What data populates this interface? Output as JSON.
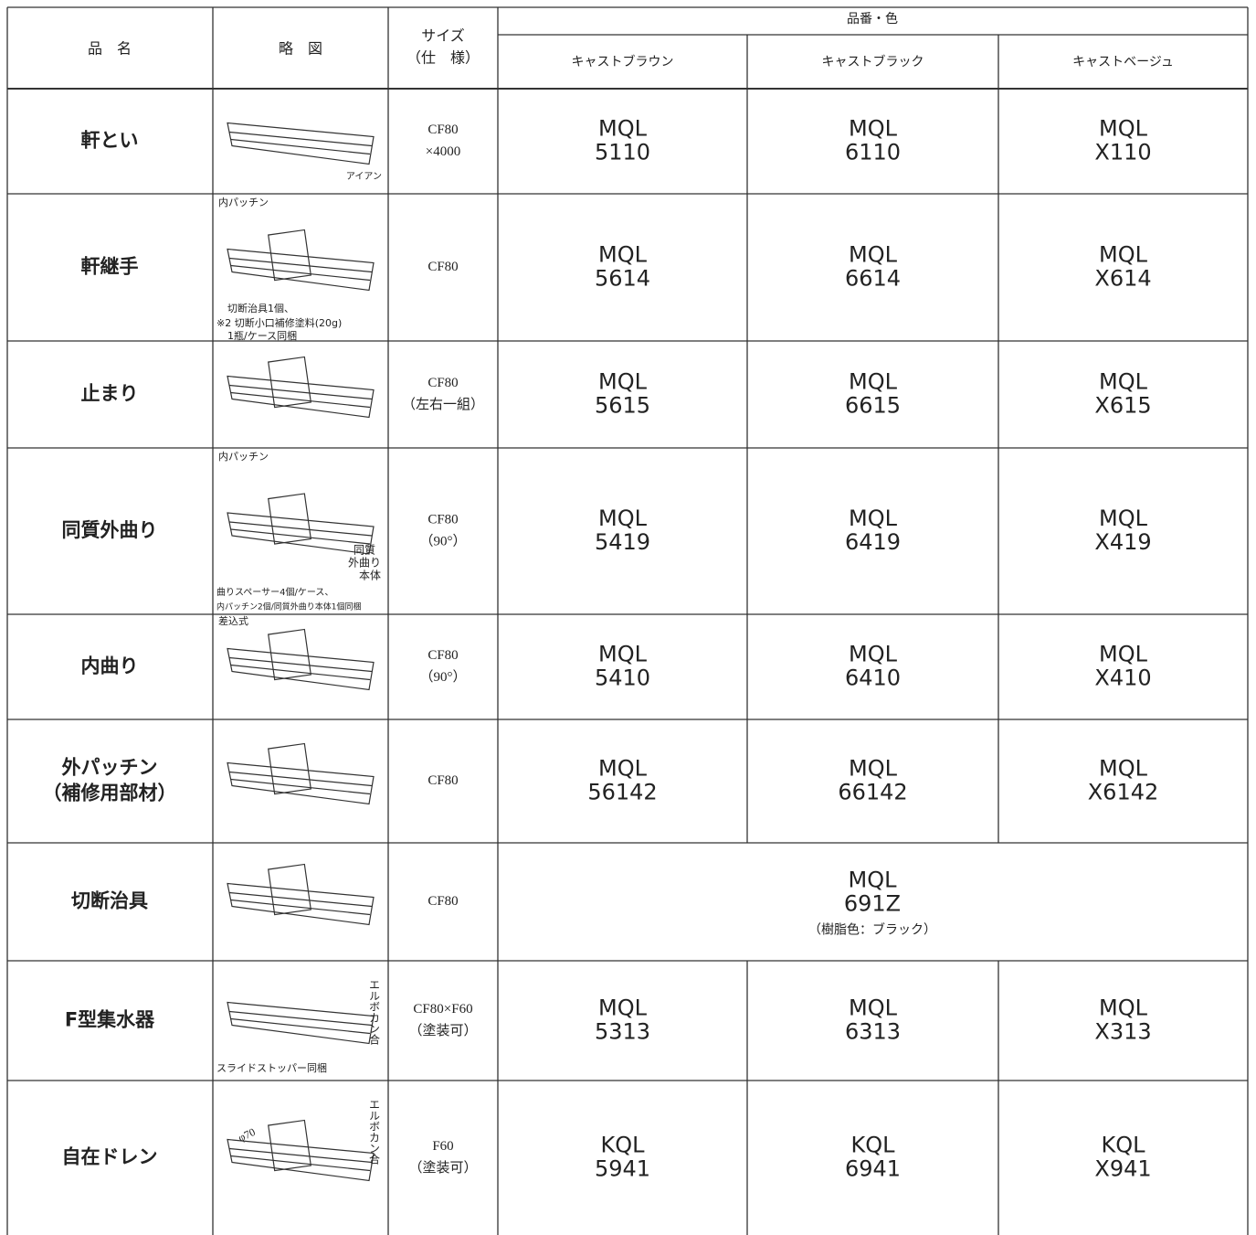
{
  "header": {
    "name": "品　名",
    "sketch": "略　図",
    "size": [
      "サイズ",
      "（仕　様）"
    ],
    "code_color": "品番・色",
    "colors": [
      "キャストブラウン",
      "キャストブラック",
      "キャストベージュ"
    ]
  },
  "rows": [
    {
      "name": [
        "軒とい"
      ],
      "notes": [
        "アイアン"
      ],
      "size": [
        "CF80",
        "×4000"
      ],
      "codes": [
        [
          "MQL",
          "5110"
        ],
        [
          "MQL",
          "6110"
        ],
        [
          "MQL",
          "X110"
        ]
      ]
    },
    {
      "name": [
        "軒継手"
      ],
      "notes": [
        "内パッチン",
        "切断治具1個、",
        "※2 切断小口補修塗料(20g)",
        "1瓶/ケース同梱"
      ],
      "size": [
        "CF80"
      ],
      "codes": [
        [
          "MQL",
          "5614"
        ],
        [
          "MQL",
          "6614"
        ],
        [
          "MQL",
          "X614"
        ]
      ]
    },
    {
      "name": [
        "止まり"
      ],
      "notes": [],
      "size": [
        "CF80",
        "（左右一組）"
      ],
      "codes": [
        [
          "MQL",
          "5615"
        ],
        [
          "MQL",
          "6615"
        ],
        [
          "MQL",
          "X615"
        ]
      ]
    },
    {
      "name": [
        "同質外曲り"
      ],
      "notes": [
        "内パッチン",
        "同質",
        "外曲り",
        "本体",
        "曲りスペーサー4個/ケース、",
        "内パッチン2個/同質外曲り本体1個同梱"
      ],
      "size": [
        "CF80",
        "（90°）"
      ],
      "codes": [
        [
          "MQL",
          "5419"
        ],
        [
          "MQL",
          "6419"
        ],
        [
          "MQL",
          "X419"
        ]
      ]
    },
    {
      "name": [
        "内曲り"
      ],
      "notes": [
        "差込式"
      ],
      "size": [
        "CF80",
        "（90°）"
      ],
      "codes": [
        [
          "MQL",
          "5410"
        ],
        [
          "MQL",
          "6410"
        ],
        [
          "MQL",
          "X410"
        ]
      ]
    },
    {
      "name": [
        "外パッチン",
        "（補修用部材）"
      ],
      "notes": [],
      "size": [
        "CF80"
      ],
      "codes": [
        [
          "MQL",
          "56142"
        ],
        [
          "MQL",
          "66142"
        ],
        [
          "MQL",
          "X6142"
        ]
      ]
    },
    {
      "name": [
        "切断治具"
      ],
      "notes": [],
      "size": [
        "CF80"
      ],
      "codes": [
        [
          "MQL",
          "691Z"
        ]
      ],
      "code_note": "（樹脂色：ブラック）"
    },
    {
      "name": [
        "F型集水器"
      ],
      "notes": [
        "エルボカン合",
        "スライドストッパー同梱"
      ],
      "size": [
        "CF80×F60",
        "（塗装可）"
      ],
      "codes": [
        [
          "MQL",
          "5313"
        ],
        [
          "MQL",
          "6313"
        ],
        [
          "MQL",
          "X313"
        ]
      ]
    },
    {
      "name": [
        "自在ドレン"
      ],
      "notes": [
        "φ70",
        "エルボカン合"
      ],
      "size": [
        "F60",
        "（塗装可）"
      ],
      "codes": [
        [
          "KQL",
          "5941"
        ],
        [
          "KQL",
          "6941"
        ],
        [
          "KQL",
          "X941"
        ]
      ]
    }
  ]
}
